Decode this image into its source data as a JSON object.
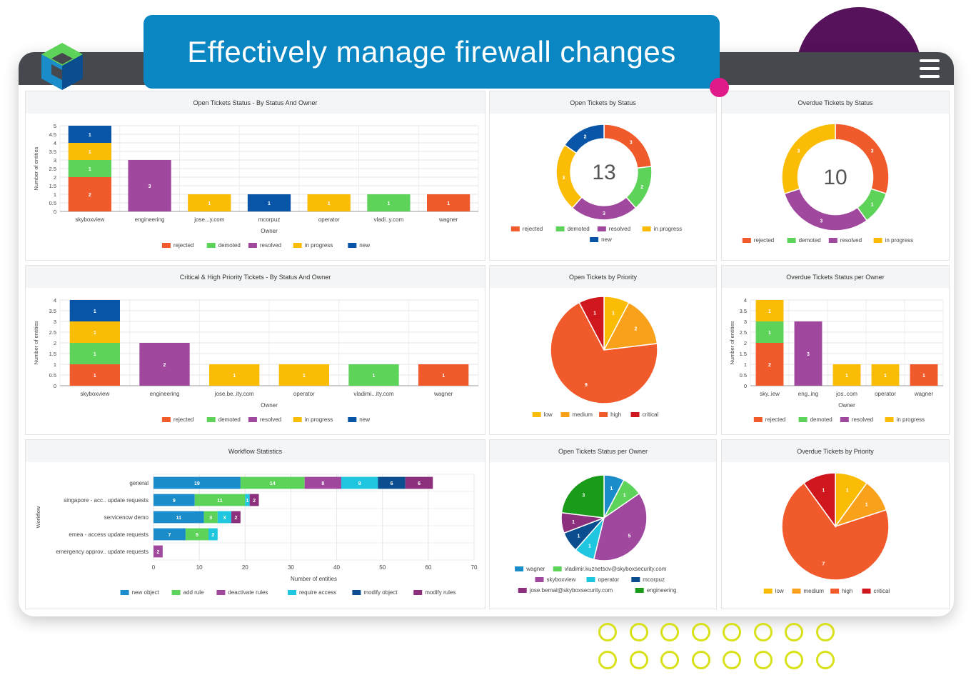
{
  "banner": {
    "title": "Effectively manage firewall changes"
  },
  "icons": {
    "logo": "skybox-logo",
    "menu": "hamburger-menu-icon"
  },
  "colors": {
    "banner_bg": "#0a86c3",
    "topbar": "#45494d",
    "accent_purple": "#56125b",
    "accent_pink": "#e11a8a",
    "rings": "#d8e11a",
    "rejected": "#f15a2b",
    "demoted": "#5ed35a",
    "resolved": "#a0479e",
    "in_progress": "#fbbc05",
    "new": "#0854a6",
    "low": "#fbbc05",
    "medium": "#f9a11b",
    "high": "#f15a2b",
    "critical": "#d0171d",
    "wf_new_object": "#1a8cc9",
    "wf_add_rule": "#5ed35a",
    "wf_deactivate_rules": "#a0479e",
    "wf_require_access": "#1fc6e0",
    "wf_modify_object": "#0a4e8f",
    "wf_modify_rules": "#8c2f7c"
  },
  "chart_data": [
    {
      "id": "p1",
      "type": "bar",
      "stacked": true,
      "title": "Open Tickets Status - By Status And Owner",
      "xlabel": "Owner",
      "ylabel": "Number of entities",
      "ylim": [
        0,
        5
      ],
      "yticks": [
        "0",
        "0.5",
        "1",
        "1.5",
        "2",
        "2.5",
        "3",
        "3.5",
        "4",
        "4.5",
        "5"
      ],
      "categories": [
        "skyboxview",
        "engineering",
        "jose...y.com",
        "mcorpuz",
        "operator",
        "vladi..y.com",
        "wagner"
      ],
      "series": [
        {
          "name": "rejected",
          "color": "#f15a2b",
          "values": [
            2,
            0,
            0,
            0,
            0,
            0,
            1
          ]
        },
        {
          "name": "demoted",
          "color": "#5ed35a",
          "values": [
            1,
            0,
            0,
            0,
            0,
            1,
            0
          ]
        },
        {
          "name": "resolved",
          "color": "#a0479e",
          "values": [
            0,
            3,
            0,
            0,
            0,
            0,
            0
          ]
        },
        {
          "name": "in progress",
          "color": "#fbbc05",
          "values": [
            1,
            0,
            1,
            0,
            1,
            0,
            0
          ]
        },
        {
          "name": "new",
          "color": "#0854a6",
          "values": [
            1,
            0,
            0,
            1,
            0,
            0,
            0
          ]
        }
      ],
      "legend": "bottom"
    },
    {
      "id": "p2",
      "type": "pie",
      "donut": true,
      "center": "13",
      "title": "Open Tickets by Status",
      "slices": [
        {
          "name": "rejected",
          "color": "#f15a2b",
          "value": 3
        },
        {
          "name": "demoted",
          "color": "#5ed35a",
          "value": 2
        },
        {
          "name": "resolved",
          "color": "#a0479e",
          "value": 3
        },
        {
          "name": "in progress",
          "color": "#fbbc05",
          "value": 3
        },
        {
          "name": "new",
          "color": "#0854a6",
          "value": 2
        }
      ],
      "legend": "bottom"
    },
    {
      "id": "p3",
      "type": "pie",
      "donut": true,
      "center": "10",
      "title": "Overdue Tickets by Status",
      "slices": [
        {
          "name": "rejected",
          "color": "#f15a2b",
          "value": 3
        },
        {
          "name": "demoted",
          "color": "#5ed35a",
          "value": 1
        },
        {
          "name": "resolved",
          "color": "#a0479e",
          "value": 3
        },
        {
          "name": "in progress",
          "color": "#fbbc05",
          "value": 3
        }
      ],
      "legend": "bottom"
    },
    {
      "id": "p4",
      "type": "bar",
      "stacked": true,
      "title": "Critical & High Priority Tickets - By Status And Owner",
      "xlabel": "Owner",
      "ylabel": "Number of entities",
      "ylim": [
        0,
        4
      ],
      "yticks": [
        "0",
        "0.5",
        "1",
        "1.5",
        "2",
        "2.5",
        "3",
        "3.5",
        "4"
      ],
      "categories": [
        "skyboxview",
        "engineering",
        "jose.be..ity.com",
        "operator",
        "vladimi...ity.com",
        "wagner"
      ],
      "series": [
        {
          "name": "rejected",
          "color": "#f15a2b",
          "values": [
            1,
            0,
            0,
            0,
            0,
            1
          ]
        },
        {
          "name": "demoted",
          "color": "#5ed35a",
          "values": [
            1,
            0,
            0,
            0,
            1,
            0
          ]
        },
        {
          "name": "resolved",
          "color": "#a0479e",
          "values": [
            0,
            2,
            0,
            0,
            0,
            0
          ]
        },
        {
          "name": "in progress",
          "color": "#fbbc05",
          "values": [
            1,
            0,
            1,
            1,
            0,
            0
          ]
        },
        {
          "name": "new",
          "color": "#0854a6",
          "values": [
            1,
            0,
            0,
            0,
            0,
            0
          ]
        }
      ],
      "legend": "bottom"
    },
    {
      "id": "p5",
      "type": "pie",
      "title": "Open Tickets by Priority",
      "slices": [
        {
          "name": "low",
          "color": "#fbbc05",
          "value": 1
        },
        {
          "name": "medium",
          "color": "#f9a11b",
          "value": 2
        },
        {
          "name": "high",
          "color": "#f15a2b",
          "value": 9
        },
        {
          "name": "critical",
          "color": "#d0171d",
          "value": 1
        }
      ],
      "legend": "bottom"
    },
    {
      "id": "p6",
      "type": "bar",
      "stacked": true,
      "title": "Overdue Tickets Status per Owner",
      "xlabel": "Owner",
      "ylabel": "Number of entities",
      "ylim": [
        0,
        4
      ],
      "yticks": [
        "0",
        "0.5",
        "1",
        "1.5",
        "2",
        "2.5",
        "3",
        "3.5",
        "4"
      ],
      "categories": [
        "sky..iew",
        "eng..ing",
        "jos..com",
        "operator",
        "wagner"
      ],
      "series": [
        {
          "name": "rejected",
          "color": "#f15a2b",
          "values": [
            2,
            0,
            0,
            0,
            1
          ]
        },
        {
          "name": "demoted",
          "color": "#5ed35a",
          "values": [
            1,
            0,
            0,
            0,
            0
          ]
        },
        {
          "name": "resolved",
          "color": "#a0479e",
          "values": [
            0,
            3,
            0,
            0,
            0
          ]
        },
        {
          "name": "in progress",
          "color": "#fbbc05",
          "values": [
            1,
            0,
            1,
            1,
            0
          ]
        }
      ],
      "legend": "bottom"
    },
    {
      "id": "p7",
      "type": "bar",
      "stacked": true,
      "orientation": "horizontal",
      "title": "Workflow Statistics",
      "xlabel": "Number of entities",
      "ylabel": "Workflow",
      "xlim": [
        0,
        70
      ],
      "xticks": [
        "0",
        "10",
        "20",
        "30",
        "40",
        "50",
        "60",
        "70"
      ],
      "categories": [
        "general",
        "singapore  - acc.. update requests",
        "servicenow demo",
        "emea - access update requests",
        "emergency approv.. update requests"
      ],
      "series": [
        {
          "name": "new object",
          "color": "#1a8cc9",
          "values": [
            19,
            9,
            11,
            7,
            0
          ]
        },
        {
          "name": "add rule",
          "color": "#5ed35a",
          "values": [
            14,
            11,
            3,
            5,
            0
          ]
        },
        {
          "name": "deactivate rules",
          "color": "#a0479e",
          "values": [
            8,
            0,
            0,
            0,
            2
          ]
        },
        {
          "name": "require access",
          "color": "#1fc6e0",
          "values": [
            8,
            1,
            3,
            2,
            0
          ]
        },
        {
          "name": "modify object",
          "color": "#0a4e8f",
          "values": [
            6,
            0,
            0,
            0,
            0
          ]
        },
        {
          "name": "modify rules",
          "color": "#8c2f7c",
          "values": [
            6,
            2,
            2,
            0,
            0
          ]
        }
      ],
      "legend": "bottom"
    },
    {
      "id": "p8",
      "type": "pie",
      "title": "Open Tickets Status per Owner",
      "slices": [
        {
          "name": "wagner",
          "color": "#1a8cc9",
          "value": 1
        },
        {
          "name": "vladimir.kuznetsov@skyboxsecurity.com",
          "color": "#5ed35a",
          "value": 1
        },
        {
          "name": "skyboxview",
          "color": "#a0479e",
          "value": 5
        },
        {
          "name": "operator",
          "color": "#1fc6e0",
          "value": 1
        },
        {
          "name": "mcorpuz",
          "color": "#0a4e8f",
          "value": 1
        },
        {
          "name": "jose.bernal@skyboxsecurity.com",
          "color": "#8c2f7c",
          "value": 1
        },
        {
          "name": "engineering",
          "color": "#1a9b1a",
          "value": 3
        }
      ],
      "legend": "bottom"
    },
    {
      "id": "p9",
      "type": "pie",
      "title": "Overdue Tickets by Priority",
      "slices": [
        {
          "name": "low",
          "color": "#fbbc05",
          "value": 1
        },
        {
          "name": "medium",
          "color": "#f9a11b",
          "value": 1
        },
        {
          "name": "high",
          "color": "#f15a2b",
          "value": 7
        },
        {
          "name": "critical",
          "color": "#d0171d",
          "value": 1
        }
      ],
      "legend": "bottom"
    }
  ]
}
